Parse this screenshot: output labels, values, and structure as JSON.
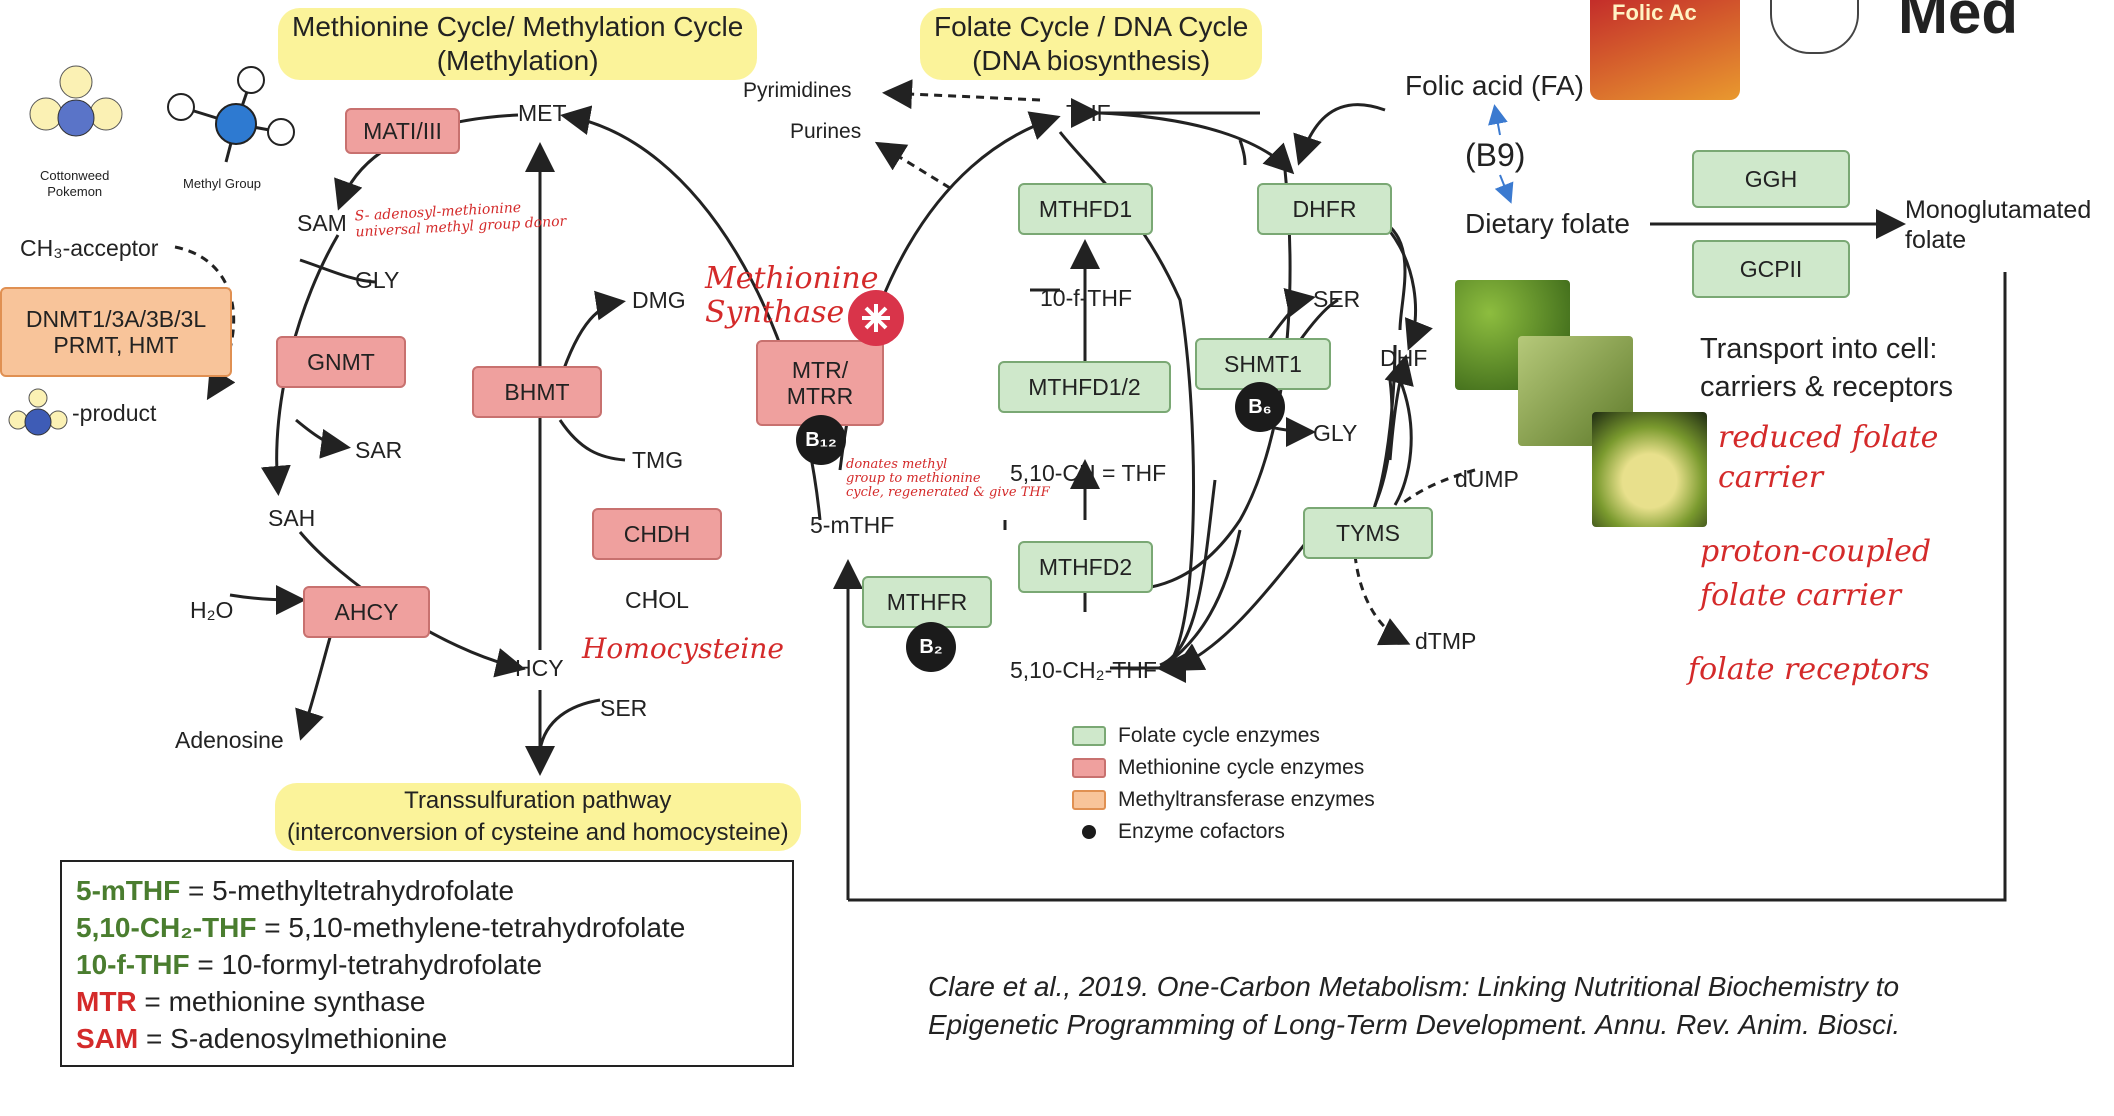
{
  "headings": {
    "methionine_cycle": "Methionine Cycle/ Methylation Cycle",
    "methylation": "(Methylation)",
    "folate_cycle": "Folate Cycle / DNA Cycle",
    "dna_biosynthesis": "(DNA biosynthesis)",
    "transsulfuration": "Transsulfuration pathway",
    "transsulfuration_sub": "(interconversion of cysteine and homocysteine)"
  },
  "icons": {
    "pokemon_caption_1": "Cottonweed",
    "pokemon_caption_2": "Pokemon",
    "methyl_caption": "Methyl Group"
  },
  "methionine": {
    "met": "MET",
    "sam": "SAM",
    "sah": "SAH",
    "hcy": "HCY",
    "ch3_acceptor": "CH₃-acceptor",
    "ch3_product": "-product",
    "gly": "GLY",
    "sar": "SAR",
    "h2o": "H₂O",
    "adenosine": "Adenosine",
    "dmg": "DMG",
    "tmg": "TMG",
    "chol": "CHOL",
    "ser": "SER"
  },
  "enzymes": {
    "mat": "MATI/III",
    "gnmt": "GNMT",
    "ahcy": "AHCY",
    "bhmt": "BHMT",
    "chdh": "CHDH",
    "mtr": "MTR/\nMTRR",
    "dnmt": "DNMT1/3A/3B/3L\nPRMT, HMT",
    "mthfd1": "MTHFD1",
    "mthfd12": "MTHFD1/2",
    "mthfd2": "MTHFD2",
    "mthfr": "MTHFR",
    "dhfr": "DHFR",
    "shmt1": "SHMT1",
    "tyms": "TYMS",
    "ggh": "GGH",
    "gcpii": "GCPII"
  },
  "cofactors": {
    "b12": "B₁₂",
    "b6": "B₆",
    "b2": "B₂"
  },
  "folate": {
    "thf": "THF",
    "pyrimidines": "Pyrimidines",
    "purines": "Purines",
    "f10_thf": "10-f-THF",
    "ch_thf": "5,10-CH = THF",
    "ch2_thf": "5,10-CH₂-THF",
    "mthf": "5-mTHF",
    "dhf": "DHF",
    "ser": "SER",
    "gly": "GLY",
    "dump": "dUMP",
    "dtmp": "dTMP"
  },
  "dietary": {
    "folic_acid": "Folic acid (FA)",
    "b9": "(B9)",
    "dietary_folate": "Dietary folate",
    "mono_1": "Monoglutamated",
    "mono_2": "folate",
    "transport_1": "Transport into cell:",
    "transport_2": "carriers & receptors"
  },
  "handwritten": {
    "sam_note_1": "S- adenosyl-methionine",
    "sam_note_2": "universal methyl group donor",
    "synthase_1": "Methionine",
    "synthase_2": "Synthase",
    "b12_note_1": "donates methyl",
    "b12_note_2": "group to methionine",
    "b12_note_3": "cycle, regenerated & give THF",
    "homocysteine": "Homocysteine",
    "rfc_1": "reduced folate",
    "rfc_2": "carrier",
    "pcft_1": "proton-coupled",
    "pcft_2": "folate carrier",
    "fr": "folate receptors"
  },
  "legend": [
    {
      "label": "Folate cycle enzymes",
      "color": "#cfe8cb",
      "border": "#7aa874"
    },
    {
      "label": "Methionine cycle enzymes",
      "color": "#efa09e",
      "border": "#c8716f"
    },
    {
      "label": "Methyltransferase enzymes",
      "color": "#f8c49a",
      "border": "#e09052"
    },
    {
      "label": "Enzyme cofactors",
      "color": "#1b1b1b",
      "border": "#1b1b1b"
    }
  ],
  "abbreviations": [
    {
      "term": "5-mTHF",
      "def": " = 5-methyltetrahydrofolate",
      "color": "#4a7d2f"
    },
    {
      "term": "5,10-CH₂-THF",
      "def": " = 5,10-methylene-tetrahydrofolate",
      "color": "#4a7d2f"
    },
    {
      "term": "10-f-THF",
      "def": " = 10-formyl-tetrahydrofolate",
      "color": "#4a7d2f"
    },
    {
      "term": "MTR",
      "def": " = methionine synthase",
      "color": "#d42a2a"
    },
    {
      "term": "SAM",
      "def": " = S-adenosylmethionine",
      "color": "#d42a2a"
    }
  ],
  "citation": {
    "line1": "Clare et al., 2019. One-Carbon Metabolism: Linking Nutritional Biochemistry to",
    "line2": "Epigenetic Programming of Long-Term Development. Annu. Rev. Anim. Biosci."
  },
  "top_right": {
    "logo_text": "Med",
    "bottle_text": "Folic Ac"
  }
}
